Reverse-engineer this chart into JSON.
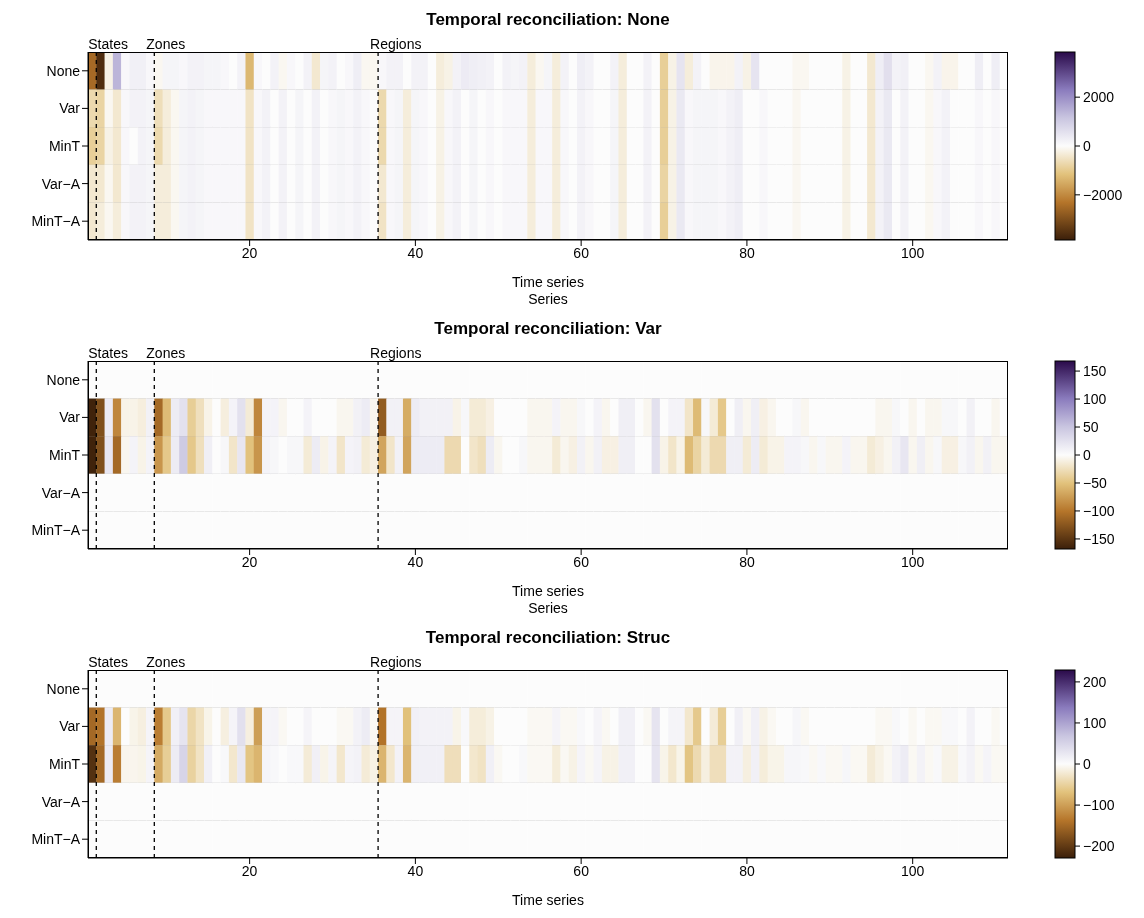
{
  "chart_data": [
    {
      "type": "heatmap",
      "title": "Temporal reconciliation: None",
      "xlabel": "Time series",
      "annotations": [
        "Series"
      ],
      "x": [
        1,
        2,
        3,
        4,
        5,
        6,
        7,
        8,
        9,
        10,
        11,
        12,
        13,
        14,
        15,
        16,
        17,
        18,
        19,
        20,
        21,
        22,
        23,
        24,
        25,
        26,
        27,
        28,
        29,
        30,
        31,
        32,
        33,
        34,
        35,
        36,
        37,
        38,
        39,
        40,
        41,
        42,
        43,
        44,
        45,
        46,
        47,
        48,
        49,
        50,
        51,
        52,
        53,
        54,
        55,
        56,
        57,
        58,
        59,
        60,
        61,
        62,
        63,
        64,
        65,
        66,
        67,
        68,
        69,
        70,
        71,
        72,
        73,
        74,
        75,
        76,
        77,
        78,
        79,
        80,
        81,
        82,
        83,
        84,
        85,
        86,
        87,
        88,
        89,
        90,
        91,
        92,
        93,
        94,
        95,
        96,
        97,
        98,
        99,
        100,
        101,
        102,
        103,
        104,
        105,
        106,
        107,
        108,
        109,
        110,
        111
      ],
      "xlim": [
        0.5,
        111.5
      ],
      "xticks": [
        20,
        40,
        60,
        80,
        100
      ],
      "y_categories": [
        "None",
        "Var",
        "MinT",
        "Var−A",
        "MinT−A"
      ],
      "clim": [
        -3850,
        3850
      ],
      "cticks": [
        -2000,
        0,
        2000
      ],
      "ref_lines": [
        {
          "axis": "x",
          "value": 1.5,
          "label": "States",
          "line_style": "dashed"
        },
        {
          "axis": "x",
          "value": 8.5,
          "label": "Zones",
          "line_style": "dashed"
        },
        {
          "axis": "x",
          "value": 35.5,
          "label": "Regions",
          "line_style": "dashed"
        }
      ],
      "cells": [
        [
          -2500,
          -3600,
          -200,
          1400,
          100,
          250,
          250,
          100,
          -100,
          150,
          150,
          100,
          200,
          200,
          150,
          150,
          100,
          0,
          200,
          -1300,
          100,
          0,
          200,
          -100,
          100,
          0,
          200,
          -400,
          150,
          200,
          0,
          100,
          300,
          -100,
          -100,
          100,
          200,
          200,
          0,
          200,
          200,
          0,
          -300,
          -200,
          200,
          350,
          300,
          250,
          200,
          0,
          200,
          150,
          200,
          -300,
          -100,
          150,
          -300,
          200,
          0,
          300,
          200,
          0,
          0,
          200,
          -300,
          0,
          0,
          200,
          0,
          -900,
          -200,
          500,
          -300,
          200,
          0,
          -150,
          -150,
          -150,
          200,
          -200,
          500,
          0,
          0,
          0,
          0,
          -100,
          -100,
          0,
          0,
          0,
          0,
          -200,
          0,
          0,
          -400,
          300,
          600,
          200,
          250,
          0,
          0,
          -100,
          200,
          -150,
          -150,
          0,
          0,
          300,
          0,
          300,
          0
        ],
        [
          -700,
          -800,
          -100,
          -400,
          100,
          200,
          200,
          150,
          -600,
          -300,
          -100,
          150,
          200,
          150,
          100,
          100,
          100,
          100,
          100,
          -500,
          100,
          200,
          0,
          200,
          0,
          150,
          0,
          200,
          0,
          100,
          150,
          100,
          200,
          100,
          0,
          -700,
          100,
          150,
          -300,
          150,
          100,
          0,
          -200,
          100,
          200,
          0,
          150,
          0,
          100,
          0,
          100,
          100,
          100,
          -300,
          100,
          100,
          -300,
          100,
          0,
          200,
          100,
          0,
          0,
          150,
          -300,
          0,
          0,
          200,
          0,
          -900,
          -200,
          400,
          100,
          150,
          150,
          150,
          100,
          200,
          300,
          0,
          0,
          100,
          0,
          0,
          0,
          -100,
          0,
          0,
          0,
          0,
          0,
          -200,
          0,
          0,
          -400,
          200,
          400,
          0,
          200,
          0,
          0,
          -100,
          100,
          200,
          0,
          0,
          0,
          100,
          0,
          100,
          0
        ],
        [
          -900,
          -800,
          -200,
          -400,
          100,
          0,
          200,
          150,
          -700,
          -300,
          -100,
          150,
          200,
          150,
          100,
          100,
          100,
          100,
          100,
          -500,
          100,
          200,
          0,
          200,
          0,
          150,
          0,
          200,
          0,
          100,
          150,
          100,
          200,
          100,
          0,
          -700,
          100,
          150,
          -300,
          150,
          100,
          0,
          -200,
          100,
          200,
          0,
          150,
          0,
          100,
          0,
          100,
          100,
          100,
          -300,
          100,
          100,
          -300,
          100,
          0,
          200,
          100,
          0,
          0,
          150,
          -300,
          0,
          0,
          200,
          0,
          -900,
          -200,
          400,
          100,
          150,
          150,
          150,
          100,
          200,
          300,
          0,
          0,
          100,
          0,
          0,
          0,
          -100,
          0,
          0,
          0,
          0,
          0,
          -200,
          0,
          0,
          -400,
          200,
          400,
          0,
          200,
          0,
          0,
          -100,
          100,
          200,
          0,
          0,
          0,
          100,
          0,
          100,
          0
        ],
        [
          -400,
          -400,
          -100,
          -400,
          100,
          200,
          200,
          150,
          -300,
          -300,
          -100,
          150,
          200,
          150,
          100,
          100,
          100,
          100,
          100,
          -500,
          100,
          200,
          0,
          200,
          0,
          150,
          0,
          200,
          0,
          100,
          150,
          100,
          200,
          100,
          0,
          -400,
          100,
          150,
          -300,
          150,
          100,
          0,
          -200,
          100,
          200,
          0,
          150,
          0,
          100,
          0,
          100,
          100,
          100,
          -300,
          100,
          100,
          -300,
          100,
          0,
          200,
          100,
          0,
          0,
          150,
          -300,
          0,
          0,
          200,
          0,
          -800,
          -200,
          400,
          100,
          150,
          150,
          150,
          100,
          200,
          300,
          0,
          0,
          100,
          0,
          0,
          0,
          -100,
          0,
          0,
          0,
          0,
          0,
          -200,
          0,
          0,
          -400,
          200,
          400,
          0,
          200,
          0,
          0,
          -100,
          100,
          200,
          0,
          0,
          0,
          100,
          0,
          100,
          0
        ],
        [
          -400,
          -300,
          -100,
          -300,
          100,
          200,
          200,
          150,
          -300,
          -300,
          -100,
          150,
          200,
          150,
          100,
          100,
          100,
          100,
          100,
          -500,
          100,
          200,
          0,
          200,
          0,
          150,
          0,
          200,
          0,
          100,
          150,
          100,
          200,
          100,
          0,
          -500,
          100,
          150,
          -300,
          150,
          100,
          0,
          -200,
          100,
          200,
          0,
          150,
          0,
          100,
          0,
          100,
          100,
          100,
          -300,
          100,
          100,
          -300,
          100,
          0,
          200,
          100,
          0,
          0,
          150,
          -300,
          0,
          0,
          200,
          0,
          -900,
          -200,
          400,
          100,
          150,
          150,
          150,
          100,
          200,
          300,
          0,
          0,
          100,
          0,
          0,
          0,
          -100,
          0,
          0,
          0,
          0,
          0,
          -200,
          0,
          0,
          -400,
          200,
          400,
          0,
          200,
          0,
          0,
          -100,
          100,
          200,
          0,
          0,
          0,
          100,
          0,
          100,
          0
        ]
      ]
    },
    {
      "type": "heatmap",
      "title": "Temporal reconciliation: Var",
      "xlabel": "Time series",
      "annotations": [
        "Series"
      ],
      "x": [
        1,
        2,
        3,
        4,
        5,
        6,
        7,
        8,
        9,
        10,
        11,
        12,
        13,
        14,
        15,
        16,
        17,
        18,
        19,
        20,
        21,
        22,
        23,
        24,
        25,
        26,
        27,
        28,
        29,
        30,
        31,
        32,
        33,
        34,
        35,
        36,
        37,
        38,
        39,
        40,
        41,
        42,
        43,
        44,
        45,
        46,
        47,
        48,
        49,
        50,
        51,
        52,
        53,
        54,
        55,
        56,
        57,
        58,
        59,
        60,
        61,
        62,
        63,
        64,
        65,
        66,
        67,
        68,
        69,
        70,
        71,
        72,
        73,
        74,
        75,
        76,
        77,
        78,
        79,
        80,
        81,
        82,
        83,
        84,
        85,
        86,
        87,
        88,
        89,
        90,
        91,
        92,
        93,
        94,
        95,
        96,
        97,
        98,
        99,
        100,
        101,
        102,
        103,
        104,
        105,
        106,
        107,
        108,
        109,
        110,
        111
      ],
      "xlim": [
        0.5,
        111.5
      ],
      "xticks": [
        20,
        40,
        60,
        80,
        100
      ],
      "y_categories": [
        "None",
        "Var",
        "MinT",
        "Var−A",
        "MinT−A"
      ],
      "clim": [
        -168,
        168
      ],
      "cticks": [
        -150,
        -100,
        -50,
        0,
        50,
        100,
        150
      ],
      "ref_lines": [
        {
          "axis": "x",
          "value": 1.5,
          "label": "States",
          "line_style": "dashed"
        },
        {
          "axis": "x",
          "value": 8.5,
          "label": "Zones",
          "line_style": "dashed"
        },
        {
          "axis": "x",
          "value": 35.5,
          "label": "Regions",
          "line_style": "dashed"
        }
      ],
      "cells": [
        [
          0,
          0,
          0,
          0,
          0,
          0,
          0,
          0,
          0,
          0,
          0,
          0,
          0,
          0,
          0,
          0,
          0,
          0,
          0,
          0,
          0,
          0,
          0,
          0,
          0,
          0,
          0,
          0,
          0,
          0,
          0,
          0,
          0,
          0,
          0,
          0,
          0,
          0,
          0,
          0,
          0,
          0,
          0,
          0,
          0,
          0,
          0,
          0,
          0,
          0,
          0,
          0,
          0,
          0,
          0,
          0,
          0,
          0,
          0,
          0,
          0,
          0,
          0,
          0,
          0,
          0,
          0,
          0,
          0,
          0,
          0,
          0,
          0,
          0,
          0,
          0,
          0,
          0,
          0,
          0,
          0,
          0,
          0,
          0,
          0,
          0,
          0,
          0,
          0,
          0,
          0,
          0,
          0,
          0,
          0,
          0,
          0,
          0,
          0,
          0,
          0,
          0,
          0,
          0,
          0,
          0,
          0,
          0,
          0,
          0,
          0
        ],
        [
          -165,
          -130,
          15,
          -90,
          -8,
          -8,
          -12,
          10,
          -110,
          -55,
          15,
          25,
          -40,
          -25,
          -8,
          0,
          -12,
          8,
          25,
          -15,
          -90,
          8,
          8,
          -5,
          0,
          0,
          8,
          0,
          0,
          0,
          -5,
          -5,
          10,
          15,
          -5,
          -120,
          10,
          10,
          -65,
          15,
          10,
          10,
          10,
          10,
          -8,
          5,
          -15,
          -15,
          -10,
          0,
          0,
          0,
          0,
          -5,
          -5,
          -5,
          8,
          -5,
          -5,
          5,
          0,
          8,
          -5,
          0,
          12,
          12,
          0,
          -5,
          25,
          0,
          8,
          8,
          -20,
          -55,
          5,
          -15,
          -45,
          0,
          12,
          -5,
          12,
          -10,
          -5,
          0,
          0,
          5,
          -5,
          0,
          0,
          0,
          0,
          0,
          0,
          0,
          0,
          -5,
          -5,
          5,
          0,
          -5,
          0,
          -5,
          -5,
          5,
          5,
          0,
          10,
          0,
          0,
          -5,
          0
        ],
        [
          -165,
          -130,
          20,
          -110,
          -5,
          8,
          -8,
          8,
          -80,
          -45,
          15,
          45,
          -45,
          -25,
          12,
          0,
          5,
          -20,
          20,
          -50,
          -80,
          8,
          5,
          0,
          5,
          5,
          -15,
          15,
          -8,
          8,
          -20,
          8,
          10,
          -15,
          -10,
          -70,
          -20,
          10,
          -70,
          15,
          15,
          15,
          15,
          -30,
          -30,
          0,
          -20,
          -25,
          15,
          -5,
          0,
          0,
          5,
          -5,
          -5,
          -5,
          -15,
          -5,
          -10,
          10,
          -5,
          10,
          -10,
          -10,
          12,
          12,
          0,
          0,
          25,
          -8,
          -20,
          -8,
          -55,
          -35,
          -15,
          -30,
          -30,
          12,
          12,
          -15,
          15,
          -15,
          -8,
          -8,
          8,
          8,
          5,
          -5,
          5,
          -5,
          -5,
          8,
          -5,
          -5,
          -15,
          -10,
          -5,
          10,
          20,
          -5,
          12,
          -5,
          5,
          -10,
          -10,
          5,
          10,
          -5,
          10,
          -5,
          -5
        ],
        [
          0,
          0,
          0,
          0,
          0,
          0,
          0,
          0,
          0,
          0,
          0,
          0,
          0,
          0,
          0,
          0,
          0,
          0,
          0,
          0,
          0,
          0,
          0,
          0,
          0,
          0,
          0,
          0,
          0,
          0,
          0,
          0,
          0,
          0,
          0,
          0,
          0,
          0,
          0,
          0,
          0,
          0,
          0,
          0,
          0,
          0,
          0,
          0,
          0,
          0,
          0,
          0,
          0,
          0,
          0,
          0,
          0,
          0,
          0,
          0,
          0,
          0,
          0,
          0,
          0,
          0,
          0,
          0,
          0,
          0,
          0,
          0,
          0,
          0,
          0,
          0,
          0,
          0,
          0,
          0,
          0,
          0,
          0,
          0,
          0,
          0,
          0,
          0,
          0,
          0,
          0,
          0,
          0,
          0,
          0,
          0,
          0,
          0,
          0,
          0,
          0,
          0,
          0,
          0,
          0,
          0,
          0,
          0,
          0,
          0,
          0
        ],
        [
          0,
          0,
          0,
          0,
          0,
          0,
          0,
          0,
          0,
          0,
          0,
          0,
          0,
          0,
          0,
          0,
          0,
          0,
          0,
          0,
          0,
          0,
          0,
          0,
          0,
          0,
          0,
          0,
          0,
          0,
          0,
          0,
          0,
          0,
          0,
          0,
          0,
          0,
          0,
          0,
          0,
          0,
          0,
          0,
          0,
          0,
          0,
          0,
          0,
          0,
          0,
          0,
          0,
          0,
          0,
          0,
          0,
          0,
          0,
          0,
          0,
          0,
          0,
          0,
          0,
          0,
          0,
          0,
          0,
          0,
          0,
          0,
          0,
          0,
          0,
          0,
          0,
          0,
          0,
          0,
          0,
          0,
          0,
          0,
          0,
          0,
          0,
          0,
          0,
          0,
          0,
          0,
          0,
          0,
          0,
          0,
          0,
          0,
          0,
          0,
          0,
          0,
          0,
          0,
          0,
          0,
          0,
          0,
          0,
          0,
          0
        ]
      ]
    },
    {
      "type": "heatmap",
      "title": "Temporal reconciliation: Struc",
      "xlabel": "Time series",
      "x": [
        1,
        2,
        3,
        4,
        5,
        6,
        7,
        8,
        9,
        10,
        11,
        12,
        13,
        14,
        15,
        16,
        17,
        18,
        19,
        20,
        21,
        22,
        23,
        24,
        25,
        26,
        27,
        28,
        29,
        30,
        31,
        32,
        33,
        34,
        35,
        36,
        37,
        38,
        39,
        40,
        41,
        42,
        43,
        44,
        45,
        46,
        47,
        48,
        49,
        50,
        51,
        52,
        53,
        54,
        55,
        56,
        57,
        58,
        59,
        60,
        61,
        62,
        63,
        64,
        65,
        66,
        67,
        68,
        69,
        70,
        71,
        72,
        73,
        74,
        75,
        76,
        77,
        78,
        79,
        80,
        81,
        82,
        83,
        84,
        85,
        86,
        87,
        88,
        89,
        90,
        91,
        92,
        93,
        94,
        95,
        96,
        97,
        98,
        99,
        100,
        101,
        102,
        103,
        104,
        105,
        106,
        107,
        108,
        109,
        110,
        111
      ],
      "xlim": [
        0.5,
        111.5
      ],
      "xticks": [
        20,
        40,
        60,
        80,
        100
      ],
      "y_categories": [
        "None",
        "Var",
        "MinT",
        "Var−A",
        "MinT−A"
      ],
      "clim": [
        -229,
        229
      ],
      "cticks": [
        -200,
        -100,
        0,
        100,
        200
      ],
      "ref_lines": [
        {
          "axis": "x",
          "value": 1.5,
          "label": "States",
          "line_style": "dashed"
        },
        {
          "axis": "x",
          "value": 8.5,
          "label": "Zones",
          "line_style": "dashed"
        },
        {
          "axis": "x",
          "value": 35.5,
          "label": "Regions",
          "line_style": "dashed"
        }
      ],
      "cells": [
        [
          0,
          0,
          0,
          0,
          0,
          0,
          0,
          0,
          0,
          0,
          0,
          0,
          0,
          0,
          0,
          0,
          0,
          0,
          0,
          0,
          0,
          0,
          0,
          0,
          0,
          0,
          0,
          0,
          0,
          0,
          0,
          0,
          0,
          0,
          0,
          0,
          0,
          0,
          0,
          0,
          0,
          0,
          0,
          0,
          0,
          0,
          0,
          0,
          0,
          0,
          0,
          0,
          0,
          0,
          0,
          0,
          0,
          0,
          0,
          0,
          0,
          0,
          0,
          0,
          0,
          0,
          0,
          0,
          0,
          0,
          0,
          0,
          0,
          0,
          0,
          0,
          0,
          0,
          0,
          0,
          0,
          0,
          0,
          0,
          0,
          0,
          0,
          0,
          0,
          0,
          0,
          0,
          0,
          0,
          0,
          0,
          0,
          0,
          0,
          0,
          0,
          0,
          0,
          0,
          0,
          0,
          0,
          0,
          0,
          0,
          0
        ],
        [
          -150,
          -140,
          20,
          -80,
          0,
          -10,
          -15,
          10,
          -130,
          -60,
          15,
          30,
          -45,
          -30,
          -10,
          0,
          -15,
          10,
          35,
          -15,
          -100,
          10,
          10,
          -5,
          0,
          0,
          10,
          0,
          0,
          0,
          -5,
          -5,
          12,
          20,
          -5,
          -140,
          10,
          10,
          -70,
          15,
          12,
          12,
          12,
          12,
          -10,
          5,
          -18,
          -18,
          -12,
          0,
          0,
          0,
          0,
          -5,
          -5,
          -5,
          10,
          -5,
          -5,
          5,
          0,
          10,
          -5,
          0,
          15,
          15,
          0,
          -5,
          30,
          0,
          10,
          10,
          -25,
          -60,
          0,
          -20,
          -55,
          0,
          15,
          -5,
          15,
          -12,
          -5,
          0,
          0,
          8,
          -5,
          0,
          0,
          0,
          0,
          0,
          0,
          0,
          0,
          -5,
          -5,
          5,
          0,
          -5,
          0,
          -5,
          -5,
          5,
          5,
          0,
          12,
          0,
          0,
          -5,
          0
        ],
        [
          -210,
          -150,
          20,
          -130,
          -8,
          -8,
          -10,
          10,
          -90,
          -55,
          20,
          50,
          -50,
          -30,
          15,
          0,
          5,
          -25,
          25,
          -65,
          -80,
          10,
          5,
          0,
          5,
          5,
          -20,
          15,
          -10,
          10,
          -25,
          10,
          12,
          -20,
          -12,
          -80,
          -25,
          12,
          -80,
          15,
          15,
          15,
          15,
          -35,
          -35,
          0,
          -25,
          -30,
          15,
          -5,
          0,
          0,
          5,
          -5,
          -5,
          -5,
          -18,
          -5,
          -12,
          10,
          -5,
          10,
          -12,
          -12,
          15,
          15,
          0,
          0,
          30,
          -10,
          -25,
          -10,
          -65,
          -40,
          -15,
          -35,
          -35,
          12,
          12,
          -15,
          15,
          -18,
          -10,
          -10,
          8,
          8,
          5,
          -5,
          5,
          -5,
          -5,
          8,
          -5,
          -5,
          -20,
          -12,
          -5,
          12,
          20,
          -5,
          12,
          -5,
          5,
          -12,
          -12,
          5,
          12,
          -5,
          10,
          -5,
          -5
        ],
        [
          0,
          0,
          0,
          0,
          0,
          0,
          0,
          0,
          0,
          0,
          0,
          0,
          0,
          0,
          0,
          0,
          0,
          0,
          0,
          0,
          0,
          0,
          0,
          0,
          0,
          0,
          0,
          0,
          0,
          0,
          0,
          0,
          0,
          0,
          0,
          0,
          0,
          0,
          0,
          0,
          0,
          0,
          0,
          0,
          0,
          0,
          0,
          0,
          0,
          0,
          0,
          0,
          0,
          0,
          0,
          0,
          0,
          0,
          0,
          0,
          0,
          0,
          0,
          0,
          0,
          0,
          0,
          0,
          0,
          0,
          0,
          0,
          0,
          0,
          0,
          0,
          0,
          0,
          0,
          0,
          0,
          0,
          0,
          0,
          0,
          0,
          0,
          0,
          0,
          0,
          0,
          0,
          0,
          0,
          0,
          0,
          0,
          0,
          0,
          0,
          0,
          0,
          0,
          0,
          0,
          0,
          0,
          0,
          0,
          0,
          0
        ],
        [
          0,
          0,
          0,
          0,
          0,
          0,
          0,
          0,
          0,
          0,
          0,
          0,
          0,
          0,
          0,
          0,
          0,
          0,
          0,
          0,
          0,
          0,
          0,
          0,
          0,
          0,
          0,
          0,
          0,
          0,
          0,
          0,
          0,
          0,
          0,
          0,
          0,
          0,
          0,
          0,
          0,
          0,
          0,
          0,
          0,
          0,
          0,
          0,
          0,
          0,
          0,
          0,
          0,
          0,
          0,
          0,
          0,
          0,
          0,
          0,
          0,
          0,
          0,
          0,
          0,
          0,
          0,
          0,
          0,
          0,
          0,
          0,
          0,
          0,
          0,
          0,
          0,
          0,
          0,
          0,
          0,
          0,
          0,
          0,
          0,
          0,
          0,
          0,
          0,
          0,
          0,
          0,
          0,
          0,
          0,
          0,
          0,
          0,
          0,
          0,
          0,
          0,
          0,
          0,
          0,
          0,
          0,
          0,
          0,
          0,
          0
        ]
      ]
    }
  ]
}
